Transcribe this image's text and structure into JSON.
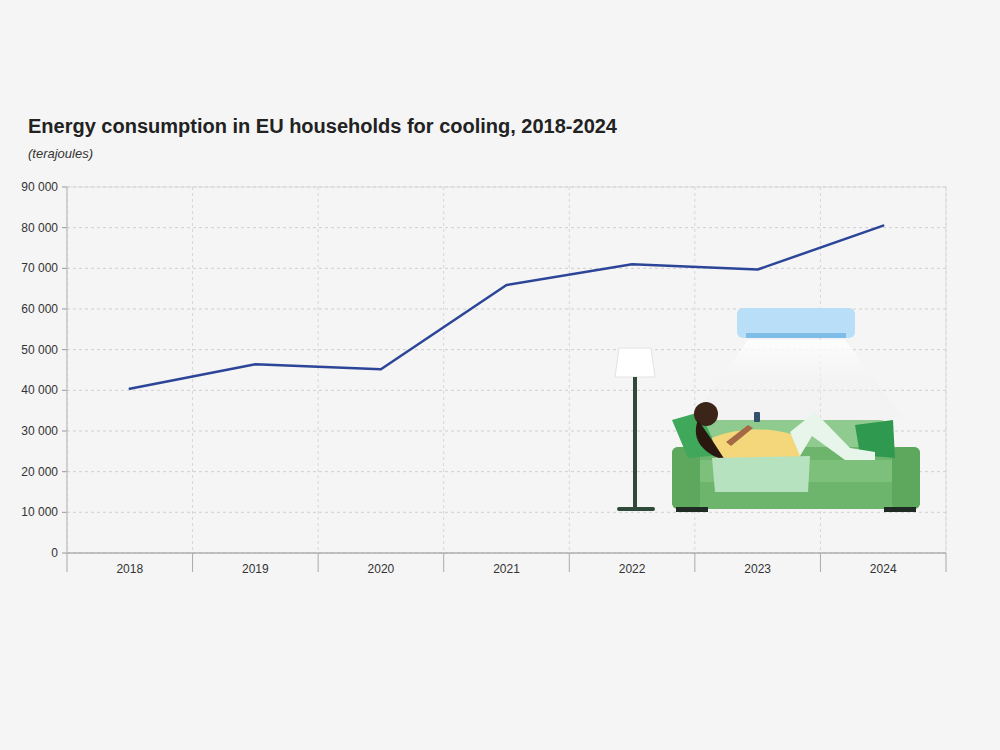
{
  "chart_data": {
    "type": "line",
    "title": "Energy consumption in EU households for cooling, 2018-2024",
    "subtitle": "(terajoules)",
    "categories": [
      "2018",
      "2019",
      "2020",
      "2021",
      "2022",
      "2023",
      "2024"
    ],
    "values": [
      40400,
      46400,
      45200,
      65900,
      71000,
      69700,
      80500
    ],
    "color": "#2c4598",
    "ylim": [
      0,
      90000
    ],
    "yticks": [
      0,
      {
        "value": 10000,
        "label": "10 000"
      },
      {
        "value": 20000,
        "label": "20 000"
      },
      {
        "value": 30000,
        "label": "30 000"
      },
      {
        "value": 40000,
        "label": "40 000"
      },
      {
        "value": 50000,
        "label": "50 000"
      },
      {
        "value": 60000,
        "label": "60 000"
      },
      {
        "value": 70000,
        "label": "70 000"
      },
      {
        "value": 80000,
        "label": "80 000"
      },
      {
        "value": 90000,
        "label": "90 000"
      }
    ],
    "grid": true
  }
}
